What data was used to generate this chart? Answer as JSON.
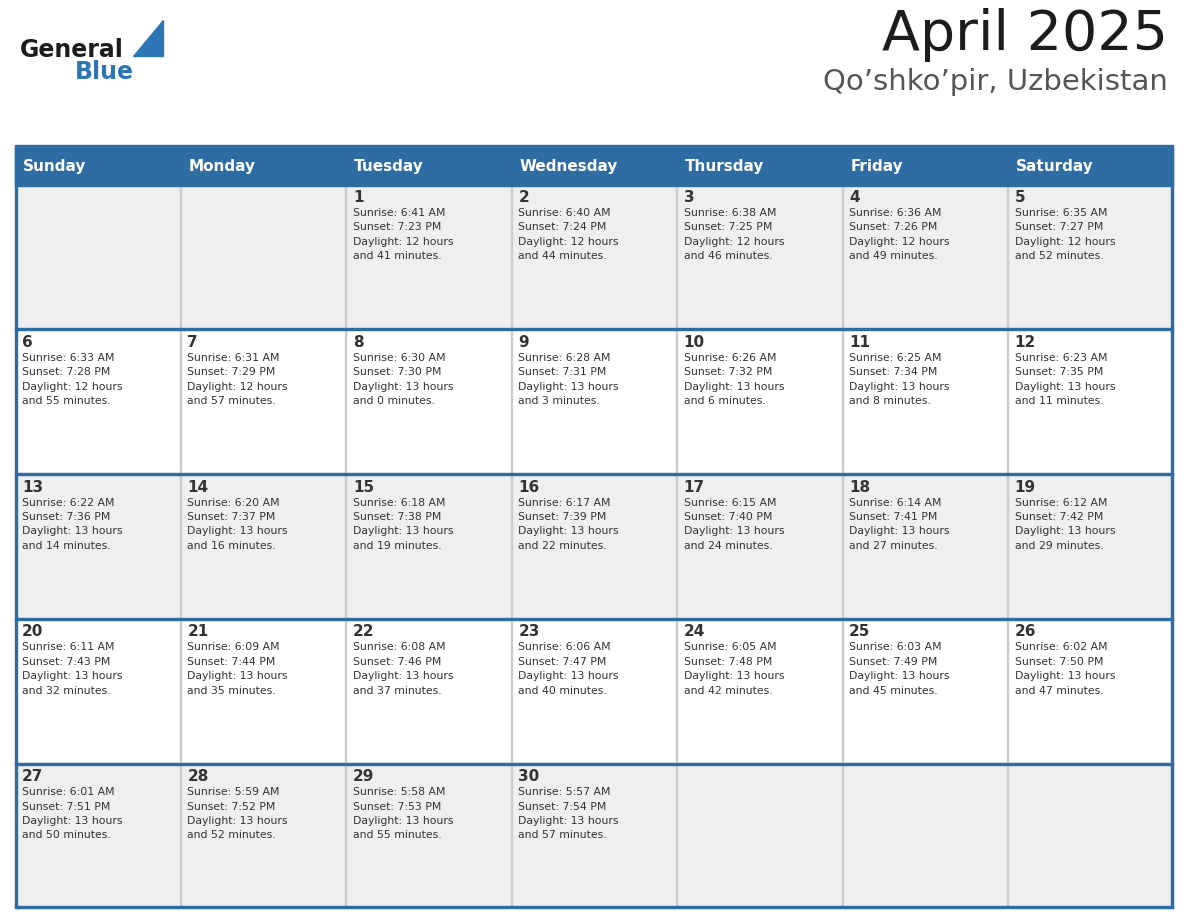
{
  "title": "April 2025",
  "subtitle": "Qo’shko’pir, Uzbekistan",
  "header_bg_color": "#2E6DA4",
  "header_text_color": "#FFFFFF",
  "row_bg_colors": [
    "#EFEFEF",
    "#FFFFFF",
    "#EFEFEF",
    "#FFFFFF",
    "#EFEFEF"
  ],
  "border_color": "#2E6DA4",
  "cell_border_color": "#AAAAAA",
  "text_color": "#333333",
  "days_of_week": [
    "Sunday",
    "Monday",
    "Tuesday",
    "Wednesday",
    "Thursday",
    "Friday",
    "Saturday"
  ],
  "fig_width": 11.88,
  "fig_height": 9.18,
  "dpi": 100,
  "weeks": [
    [
      {
        "day": "",
        "info": ""
      },
      {
        "day": "",
        "info": ""
      },
      {
        "day": "1",
        "info": "Sunrise: 6:41 AM\nSunset: 7:23 PM\nDaylight: 12 hours\nand 41 minutes."
      },
      {
        "day": "2",
        "info": "Sunrise: 6:40 AM\nSunset: 7:24 PM\nDaylight: 12 hours\nand 44 minutes."
      },
      {
        "day": "3",
        "info": "Sunrise: 6:38 AM\nSunset: 7:25 PM\nDaylight: 12 hours\nand 46 minutes."
      },
      {
        "day": "4",
        "info": "Sunrise: 6:36 AM\nSunset: 7:26 PM\nDaylight: 12 hours\nand 49 minutes."
      },
      {
        "day": "5",
        "info": "Sunrise: 6:35 AM\nSunset: 7:27 PM\nDaylight: 12 hours\nand 52 minutes."
      }
    ],
    [
      {
        "day": "6",
        "info": "Sunrise: 6:33 AM\nSunset: 7:28 PM\nDaylight: 12 hours\nand 55 minutes."
      },
      {
        "day": "7",
        "info": "Sunrise: 6:31 AM\nSunset: 7:29 PM\nDaylight: 12 hours\nand 57 minutes."
      },
      {
        "day": "8",
        "info": "Sunrise: 6:30 AM\nSunset: 7:30 PM\nDaylight: 13 hours\nand 0 minutes."
      },
      {
        "day": "9",
        "info": "Sunrise: 6:28 AM\nSunset: 7:31 PM\nDaylight: 13 hours\nand 3 minutes."
      },
      {
        "day": "10",
        "info": "Sunrise: 6:26 AM\nSunset: 7:32 PM\nDaylight: 13 hours\nand 6 minutes."
      },
      {
        "day": "11",
        "info": "Sunrise: 6:25 AM\nSunset: 7:34 PM\nDaylight: 13 hours\nand 8 minutes."
      },
      {
        "day": "12",
        "info": "Sunrise: 6:23 AM\nSunset: 7:35 PM\nDaylight: 13 hours\nand 11 minutes."
      }
    ],
    [
      {
        "day": "13",
        "info": "Sunrise: 6:22 AM\nSunset: 7:36 PM\nDaylight: 13 hours\nand 14 minutes."
      },
      {
        "day": "14",
        "info": "Sunrise: 6:20 AM\nSunset: 7:37 PM\nDaylight: 13 hours\nand 16 minutes."
      },
      {
        "day": "15",
        "info": "Sunrise: 6:18 AM\nSunset: 7:38 PM\nDaylight: 13 hours\nand 19 minutes."
      },
      {
        "day": "16",
        "info": "Sunrise: 6:17 AM\nSunset: 7:39 PM\nDaylight: 13 hours\nand 22 minutes."
      },
      {
        "day": "17",
        "info": "Sunrise: 6:15 AM\nSunset: 7:40 PM\nDaylight: 13 hours\nand 24 minutes."
      },
      {
        "day": "18",
        "info": "Sunrise: 6:14 AM\nSunset: 7:41 PM\nDaylight: 13 hours\nand 27 minutes."
      },
      {
        "day": "19",
        "info": "Sunrise: 6:12 AM\nSunset: 7:42 PM\nDaylight: 13 hours\nand 29 minutes."
      }
    ],
    [
      {
        "day": "20",
        "info": "Sunrise: 6:11 AM\nSunset: 7:43 PM\nDaylight: 13 hours\nand 32 minutes."
      },
      {
        "day": "21",
        "info": "Sunrise: 6:09 AM\nSunset: 7:44 PM\nDaylight: 13 hours\nand 35 minutes."
      },
      {
        "day": "22",
        "info": "Sunrise: 6:08 AM\nSunset: 7:46 PM\nDaylight: 13 hours\nand 37 minutes."
      },
      {
        "day": "23",
        "info": "Sunrise: 6:06 AM\nSunset: 7:47 PM\nDaylight: 13 hours\nand 40 minutes."
      },
      {
        "day": "24",
        "info": "Sunrise: 6:05 AM\nSunset: 7:48 PM\nDaylight: 13 hours\nand 42 minutes."
      },
      {
        "day": "25",
        "info": "Sunrise: 6:03 AM\nSunset: 7:49 PM\nDaylight: 13 hours\nand 45 minutes."
      },
      {
        "day": "26",
        "info": "Sunrise: 6:02 AM\nSunset: 7:50 PM\nDaylight: 13 hours\nand 47 minutes."
      }
    ],
    [
      {
        "day": "27",
        "info": "Sunrise: 6:01 AM\nSunset: 7:51 PM\nDaylight: 13 hours\nand 50 minutes."
      },
      {
        "day": "28",
        "info": "Sunrise: 5:59 AM\nSunset: 7:52 PM\nDaylight: 13 hours\nand 52 minutes."
      },
      {
        "day": "29",
        "info": "Sunrise: 5:58 AM\nSunset: 7:53 PM\nDaylight: 13 hours\nand 55 minutes."
      },
      {
        "day": "30",
        "info": "Sunrise: 5:57 AM\nSunset: 7:54 PM\nDaylight: 13 hours\nand 57 minutes."
      },
      {
        "day": "",
        "info": ""
      },
      {
        "day": "",
        "info": ""
      },
      {
        "day": "",
        "info": ""
      }
    ]
  ]
}
